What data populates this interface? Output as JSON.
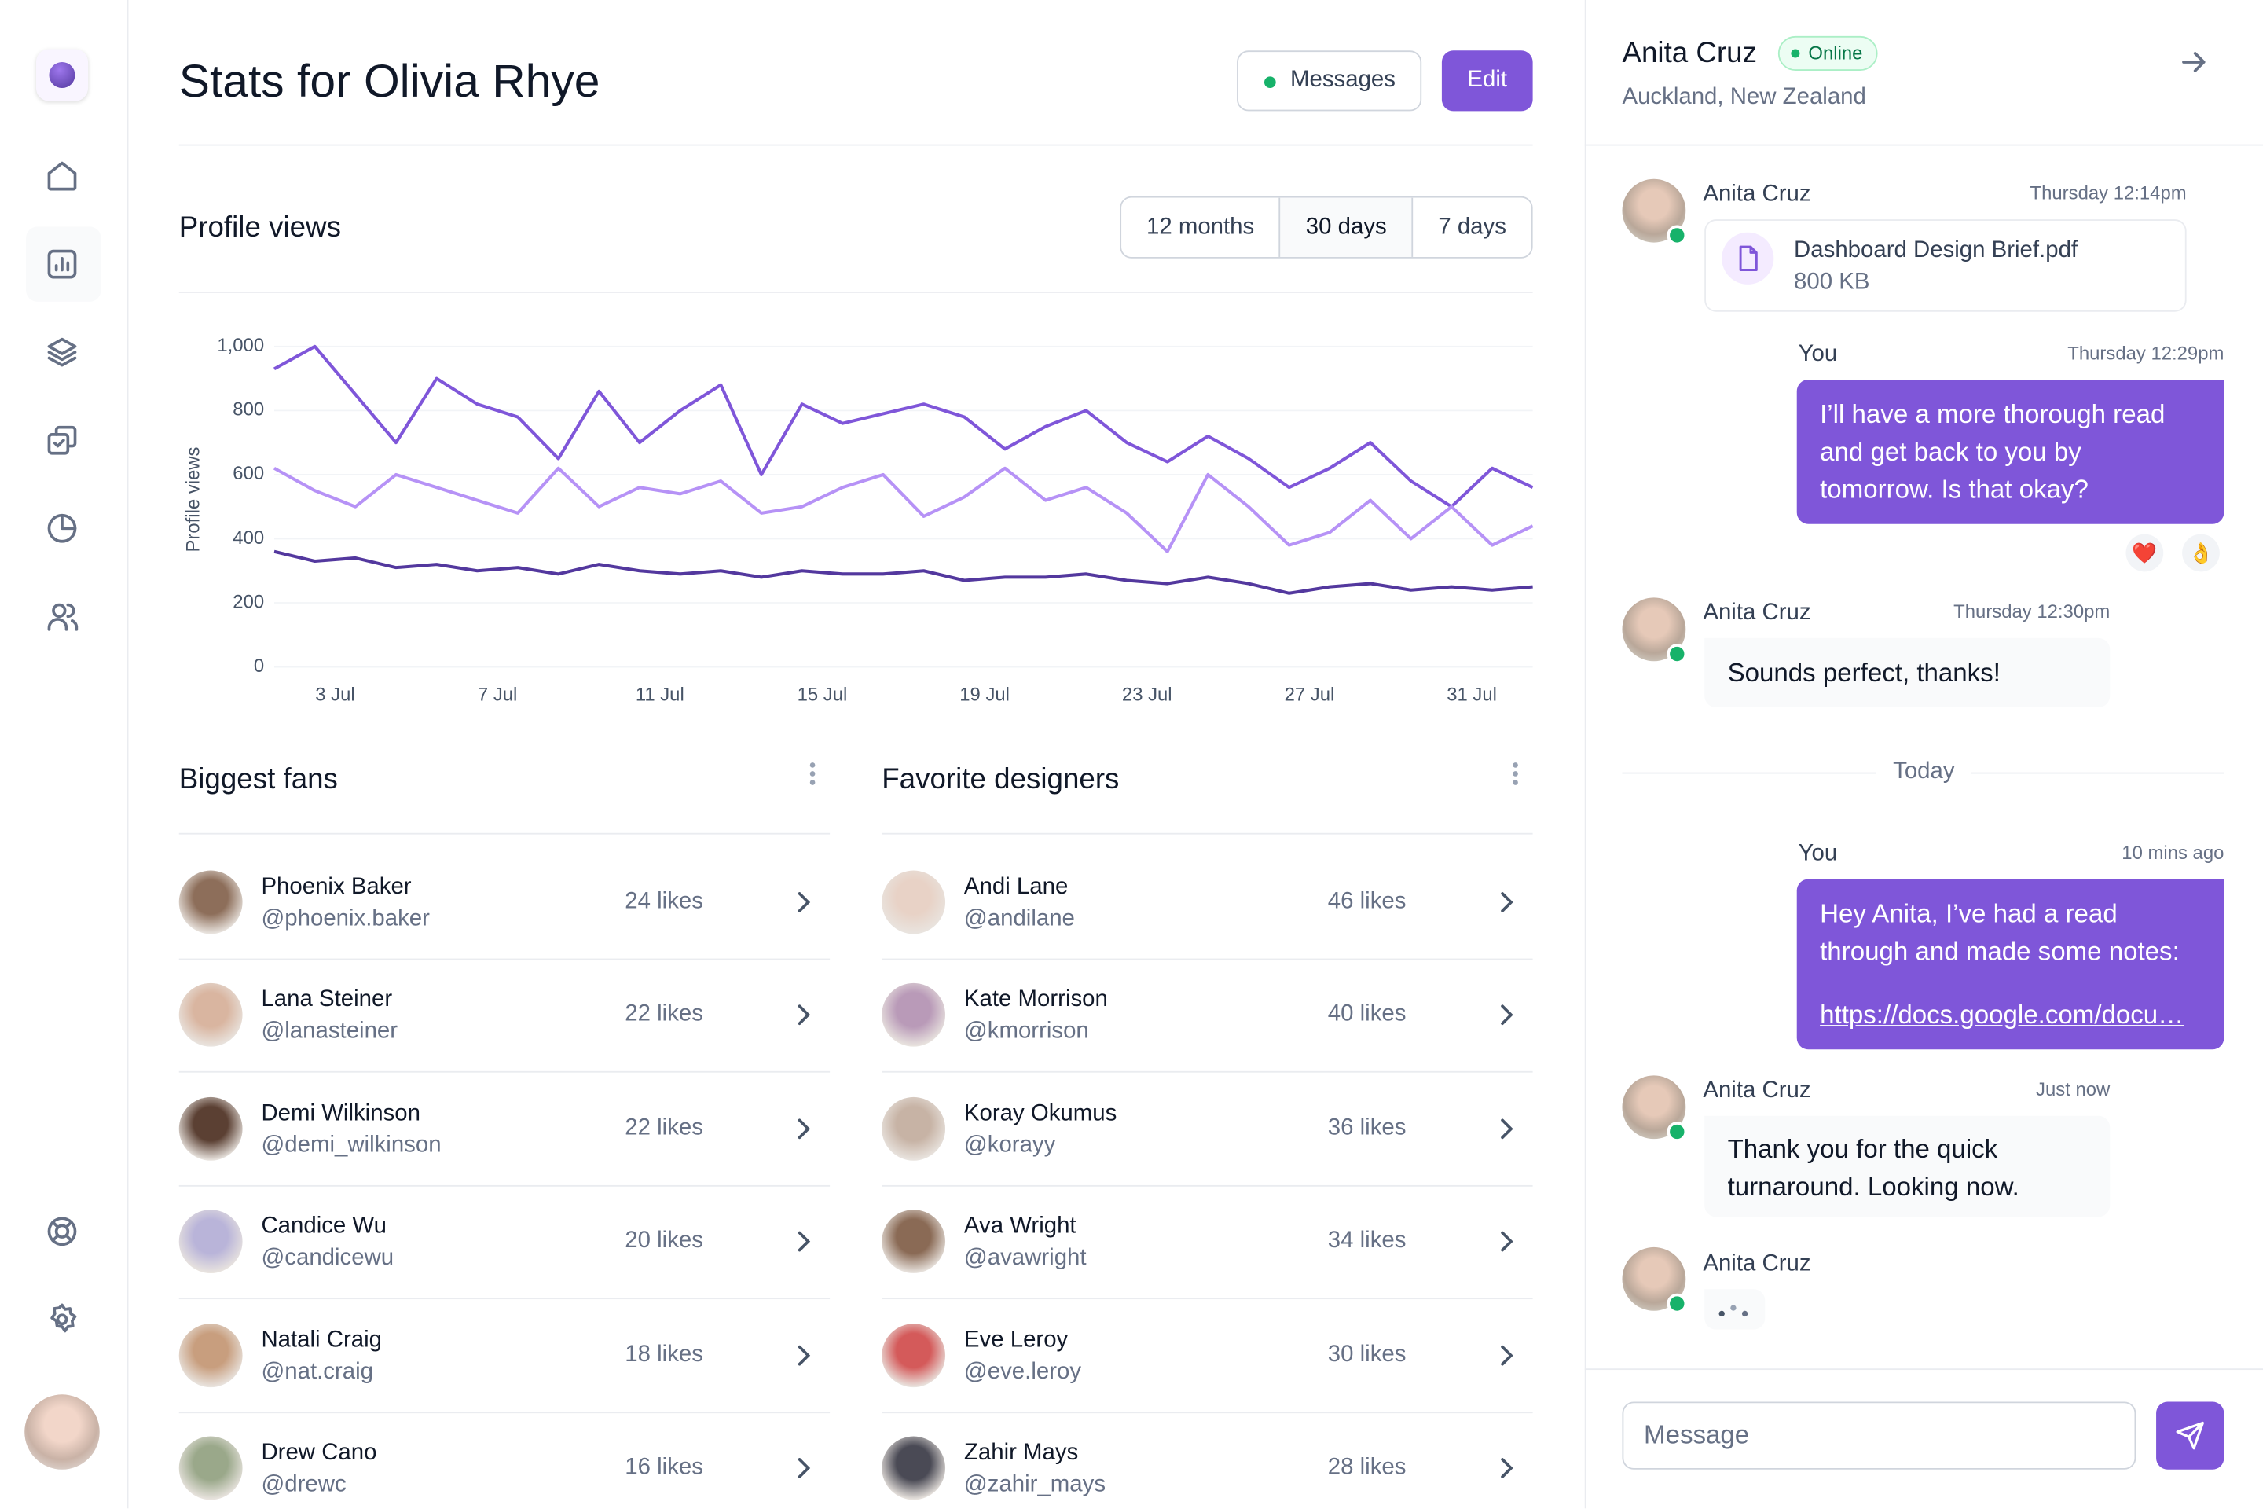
{
  "header": {
    "title": "Stats for Olivia Rhye",
    "buttons": [
      "Messages",
      "Edit"
    ]
  },
  "chart_section": {
    "title": "Profile views",
    "tabs": [
      "12 months",
      "30 days",
      "7 days"
    ],
    "selected_tab": 1
  },
  "chart_data": {
    "type": "line",
    "y_label": "Profile views",
    "grid": true,
    "x": [
      1.5,
      2.5,
      3.5,
      4.5,
      5.5,
      6.5,
      7.5,
      8.5,
      9.5,
      10.5,
      11.5,
      12.5,
      13.5,
      14.5,
      15.5,
      16.5,
      17.5,
      18.5,
      19.5,
      20.5,
      21.5,
      22.5,
      23.5,
      24.5,
      25.5,
      26.5,
      27.5,
      28.5,
      29.5,
      30.5,
      31.5,
      32.5
    ],
    "xlim": [
      1.5,
      32.5
    ],
    "xticks": [
      {
        "value": 3,
        "label": "3 Jul"
      },
      {
        "value": 7,
        "label": "7 Jul"
      },
      {
        "value": 11,
        "label": "11 Jul"
      },
      {
        "value": 15,
        "label": "15 Jul"
      },
      {
        "value": 19,
        "label": "19 Jul"
      },
      {
        "value": 23,
        "label": "23 Jul"
      },
      {
        "value": 27,
        "label": "27 Jul"
      },
      {
        "value": 31,
        "label": "31 Jul"
      }
    ],
    "ylim": [
      0,
      1000
    ],
    "yticks": [
      0,
      200,
      400,
      600,
      800,
      {
        "value": 1000,
        "label": "1,000"
      }
    ],
    "series": [
      {
        "color": "#7F56D9",
        "values": [
          930,
          1000,
          850,
          700,
          900,
          820,
          780,
          650,
          860,
          700,
          800,
          880,
          600,
          820,
          760,
          790,
          820,
          780,
          680,
          750,
          800,
          700,
          640,
          720,
          650,
          560,
          620,
          700,
          580,
          500,
          620,
          560
        ]
      },
      {
        "color": "#B692F6",
        "values": [
          620,
          550,
          500,
          600,
          560,
          520,
          480,
          620,
          500,
          560,
          540,
          580,
          480,
          500,
          560,
          600,
          470,
          530,
          620,
          520,
          560,
          480,
          360,
          600,
          500,
          380,
          420,
          520,
          400,
          500,
          380,
          440
        ]
      },
      {
        "color": "#53389E",
        "values": [
          360,
          330,
          340,
          310,
          320,
          300,
          310,
          290,
          320,
          300,
          290,
          300,
          280,
          300,
          290,
          290,
          300,
          270,
          280,
          280,
          290,
          270,
          260,
          280,
          260,
          230,
          250,
          260,
          240,
          250,
          240,
          250
        ]
      }
    ]
  },
  "fans": {
    "title": "Biggest fans",
    "rows": [
      {
        "name": "Phoenix Baker",
        "handle": "@phoenix.baker",
        "likes": "24 likes"
      },
      {
        "name": "Lana Steiner",
        "handle": "@lanasteiner",
        "likes": "22 likes"
      },
      {
        "name": "Demi Wilkinson",
        "handle": "@demi_wilkinson",
        "likes": "22 likes"
      },
      {
        "name": "Candice Wu",
        "handle": "@candicewu",
        "likes": "20 likes"
      },
      {
        "name": "Natali Craig",
        "handle": "@nat.craig",
        "likes": "18 likes"
      },
      {
        "name": "Drew Cano",
        "handle": "@drewc",
        "likes": "16 likes"
      }
    ]
  },
  "designers": {
    "title": "Favorite designers",
    "rows": [
      {
        "name": "Andi Lane",
        "handle": "@andilane",
        "likes": "46 likes"
      },
      {
        "name": "Kate Morrison",
        "handle": "@kmorrison",
        "likes": "40 likes"
      },
      {
        "name": "Koray Okumus",
        "handle": "@korayy",
        "likes": "36 likes"
      },
      {
        "name": "Ava Wright",
        "handle": "@avawright",
        "likes": "34 likes"
      },
      {
        "name": "Eve Leroy",
        "handle": "@eve.leroy",
        "likes": "30 likes"
      },
      {
        "name": "Zahir Mays",
        "handle": "@zahir_mays",
        "likes": "28 likes"
      }
    ]
  },
  "chat": {
    "name": "Anita Cruz",
    "status": "Online",
    "location": "Auckland, New Zealand",
    "messages": [
      {
        "author": "Anita Cruz",
        "time": "Thursday 12:14pm",
        "file": "Dashboard Design Brief.pdf",
        "size": "800 KB"
      },
      {
        "author": "You",
        "time": "Thursday 12:29pm",
        "text": "I’ll have a more thorough read and get back to you by tomorrow. Is that okay?",
        "reactions": [
          "❤️",
          "👌"
        ]
      },
      {
        "author": "Anita Cruz",
        "time": "Thursday 12:30pm",
        "text": "Sounds perfect, thanks!"
      },
      {
        "author": "You",
        "time": "10 mins ago",
        "text": "Hey Anita, I’ve had a read through and made some notes:",
        "link": "https://docs.google.com/docu…"
      },
      {
        "author": "Anita Cruz",
        "time": "Just now",
        "text": "Thank you for the quick turnaround. Looking now."
      },
      {
        "author": "Anita Cruz"
      }
    ],
    "divider": "Today",
    "input_placeholder": "Message"
  }
}
